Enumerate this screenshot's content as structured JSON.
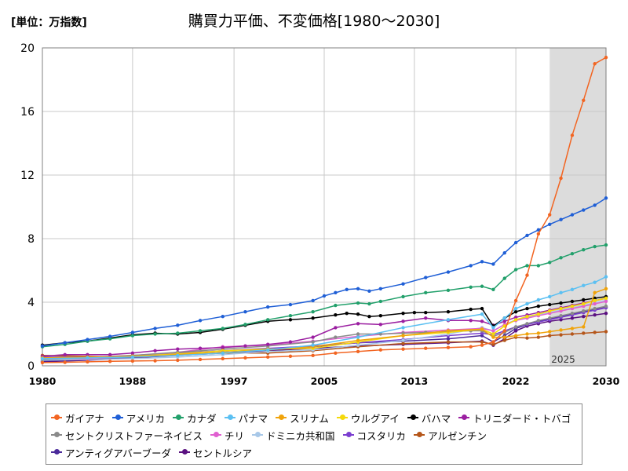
{
  "header": {
    "unit": "[単位：万指数]",
    "title": "購買力平価、不変価格[1980～2030]"
  },
  "chart_data": {
    "type": "line",
    "title": "購買力平価、不変価格[1980～2030]",
    "ylabel": "[単位：万指数]",
    "xlim": [
      1980,
      2030
    ],
    "ylim": [
      0,
      20
    ],
    "x_ticks": [
      1980,
      1988,
      1997,
      2005,
      2013,
      2022,
      2030
    ],
    "y_ticks": [
      0,
      4,
      8,
      12,
      16,
      20
    ],
    "grid": true,
    "forecast_from": 2025,
    "forecast_label": "2025",
    "legend_position": "bottom",
    "series": [
      {
        "name": "ガイアナ",
        "color": "#f26522",
        "x": [
          1980,
          1982,
          1984,
          1986,
          1988,
          1990,
          1992,
          1994,
          1996,
          1998,
          2000,
          2002,
          2004,
          2006,
          2008,
          2010,
          2012,
          2014,
          2016,
          2018,
          2019,
          2020,
          2021,
          2022,
          2023,
          2024,
          2025,
          2026,
          2027,
          2028,
          2029,
          2030
        ],
        "values": [
          0.2,
          0.22,
          0.25,
          0.28,
          0.3,
          0.32,
          0.35,
          0.4,
          0.45,
          0.5,
          0.55,
          0.6,
          0.65,
          0.8,
          0.9,
          1.0,
          1.05,
          1.1,
          1.15,
          1.2,
          1.3,
          1.5,
          2.2,
          4.1,
          5.7,
          8.3,
          9.5,
          11.8,
          14.5,
          16.7,
          19.0,
          19.4
        ]
      },
      {
        "name": "アメリカ",
        "color": "#1f5fd6",
        "x": [
          1980,
          1982,
          1984,
          1986,
          1988,
          1990,
          1992,
          1994,
          1996,
          1998,
          2000,
          2002,
          2004,
          2005,
          2006,
          2007,
          2008,
          2009,
          2010,
          2012,
          2014,
          2016,
          2018,
          2019,
          2020,
          2021,
          2022,
          2023,
          2024,
          2025,
          2026,
          2027,
          2028,
          2029,
          2030
        ],
        "values": [
          1.25,
          1.45,
          1.65,
          1.85,
          2.1,
          2.35,
          2.55,
          2.85,
          3.1,
          3.4,
          3.7,
          3.85,
          4.1,
          4.4,
          4.6,
          4.8,
          4.85,
          4.7,
          4.85,
          5.15,
          5.55,
          5.9,
          6.3,
          6.55,
          6.4,
          7.1,
          7.75,
          8.2,
          8.55,
          8.9,
          9.2,
          9.5,
          9.8,
          10.1,
          10.55
        ]
      },
      {
        "name": "カナダ",
        "color": "#22a06b",
        "x": [
          1980,
          1982,
          1984,
          1986,
          1988,
          1990,
          1992,
          1994,
          1996,
          1998,
          2000,
          2002,
          2004,
          2006,
          2008,
          2009,
          2010,
          2012,
          2014,
          2016,
          2018,
          2019,
          2020,
          2021,
          2022,
          2023,
          2024,
          2025,
          2026,
          2027,
          2028,
          2029,
          2030
        ],
        "values": [
          1.2,
          1.35,
          1.55,
          1.7,
          1.9,
          2.0,
          2.05,
          2.2,
          2.35,
          2.6,
          2.9,
          3.15,
          3.4,
          3.8,
          3.95,
          3.9,
          4.05,
          4.35,
          4.6,
          4.75,
          4.95,
          5.0,
          4.8,
          5.5,
          6.05,
          6.3,
          6.3,
          6.5,
          6.8,
          7.05,
          7.3,
          7.5,
          7.6
        ]
      },
      {
        "name": "パナマ",
        "color": "#5bc0f2",
        "x": [
          1980,
          1984,
          1988,
          1992,
          1996,
          2000,
          2004,
          2008,
          2012,
          2016,
          2019,
          2020,
          2021,
          2022,
          2023,
          2024,
          2025,
          2026,
          2027,
          2028,
          2029,
          2030
        ],
        "values": [
          0.45,
          0.5,
          0.55,
          0.65,
          0.8,
          1.0,
          1.3,
          1.8,
          2.4,
          2.9,
          3.25,
          2.4,
          3.0,
          3.6,
          3.9,
          4.15,
          4.35,
          4.6,
          4.8,
          5.05,
          5.25,
          5.6
        ]
      },
      {
        "name": "スリナム",
        "color": "#f0a30a",
        "x": [
          1980,
          1984,
          1988,
          1992,
          1996,
          2000,
          2004,
          2008,
          2012,
          2016,
          2019,
          2020,
          2021,
          2022,
          2023,
          2024,
          2025,
          2026,
          2027,
          2028,
          2029,
          2030
        ],
        "values": [
          0.5,
          0.55,
          0.6,
          0.7,
          0.85,
          1.0,
          1.2,
          1.6,
          1.9,
          2.2,
          2.3,
          1.8,
          1.8,
          1.9,
          2.0,
          2.05,
          2.15,
          2.25,
          2.35,
          2.45,
          4.6,
          4.85
        ]
      },
      {
        "name": "ウルグアイ",
        "color": "#f5d90a",
        "x": [
          1980,
          1984,
          1988,
          1992,
          1996,
          2000,
          2004,
          2008,
          2012,
          2016,
          2019,
          2020,
          2021,
          2022,
          2023,
          2024,
          2025,
          2026,
          2027,
          2028,
          2029,
          2030
        ],
        "values": [
          0.5,
          0.5,
          0.6,
          0.75,
          0.95,
          1.05,
          1.1,
          1.5,
          1.9,
          2.1,
          2.3,
          2.0,
          2.5,
          2.9,
          3.1,
          3.25,
          3.45,
          3.6,
          3.75,
          3.9,
          4.1,
          4.25
        ]
      },
      {
        "name": "バハマ",
        "color": "#000000",
        "x": [
          1980,
          1982,
          1984,
          1986,
          1988,
          1990,
          1992,
          1994,
          1996,
          1998,
          2000,
          2002,
          2004,
          2006,
          2007,
          2008,
          2009,
          2010,
          2012,
          2013,
          2014,
          2016,
          2018,
          2019,
          2020,
          2021,
          2022,
          2023,
          2024,
          2025,
          2026,
          2027,
          2028,
          2029,
          2030
        ],
        "values": [
          1.3,
          1.45,
          1.55,
          1.75,
          1.95,
          2.05,
          2.0,
          2.1,
          2.3,
          2.55,
          2.8,
          2.9,
          3.0,
          3.2,
          3.3,
          3.25,
          3.1,
          3.15,
          3.3,
          3.35,
          3.35,
          3.4,
          3.55,
          3.6,
          2.5,
          3.0,
          3.4,
          3.6,
          3.75,
          3.85,
          3.95,
          4.05,
          4.15,
          4.25,
          4.35
        ]
      },
      {
        "name": "トリニダード・トバゴ",
        "color": "#9b1fa1",
        "x": [
          1980,
          1982,
          1984,
          1986,
          1988,
          1990,
          1992,
          1994,
          1996,
          1998,
          2000,
          2002,
          2004,
          2006,
          2008,
          2010,
          2012,
          2014,
          2016,
          2018,
          2019,
          2020,
          2021,
          2022,
          2023,
          2024,
          2025,
          2026,
          2027,
          2028,
          2029,
          2030
        ],
        "values": [
          0.6,
          0.7,
          0.7,
          0.7,
          0.8,
          0.95,
          1.05,
          1.1,
          1.15,
          1.25,
          1.35,
          1.5,
          1.8,
          2.4,
          2.65,
          2.6,
          2.8,
          3.0,
          2.85,
          2.85,
          2.8,
          2.55,
          2.8,
          3.05,
          3.2,
          3.35,
          3.5,
          3.65,
          3.8,
          3.95,
          4.1,
          4.25
        ]
      },
      {
        "name": "セントクリストファーネイビス",
        "color": "#8a8a8a",
        "x": [
          1980,
          1984,
          1988,
          1992,
          1996,
          2000,
          2004,
          2006,
          2008,
          2010,
          2012,
          2014,
          2016,
          2018,
          2019,
          2020,
          2021,
          2022,
          2023,
          2024,
          2025,
          2026,
          2027,
          2028,
          2029,
          2030
        ],
        "values": [
          0.4,
          0.5,
          0.65,
          0.85,
          1.05,
          1.25,
          1.5,
          1.8,
          2.0,
          2.0,
          2.05,
          2.1,
          2.15,
          2.2,
          2.2,
          1.85,
          2.1,
          2.45,
          2.65,
          2.85,
          3.0,
          3.15,
          3.3,
          3.45,
          3.6,
          3.75
        ]
      },
      {
        "name": "チリ",
        "color": "#e060d0",
        "x": [
          1980,
          1984,
          1988,
          1992,
          1996,
          2000,
          2004,
          2008,
          2012,
          2016,
          2019,
          2020,
          2021,
          2022,
          2023,
          2024,
          2025,
          2026,
          2027,
          2028,
          2029,
          2030
        ],
        "values": [
          0.45,
          0.45,
          0.6,
          0.85,
          1.2,
          1.3,
          1.55,
          1.85,
          2.1,
          2.25,
          2.35,
          2.2,
          2.6,
          2.85,
          3.0,
          3.15,
          3.3,
          3.45,
          3.6,
          3.75,
          3.9,
          4.05
        ]
      },
      {
        "name": "ドミニカ共和国",
        "color": "#a8c8e8",
        "x": [
          1980,
          1984,
          1988,
          1992,
          1996,
          2000,
          2004,
          2008,
          2012,
          2016,
          2019,
          2020,
          2021,
          2022,
          2023,
          2024,
          2025,
          2026,
          2027,
          2028,
          2029,
          2030
        ],
        "values": [
          0.35,
          0.4,
          0.45,
          0.55,
          0.7,
          0.9,
          1.0,
          1.3,
          1.6,
          2.0,
          2.4,
          2.2,
          2.6,
          2.9,
          3.05,
          3.2,
          3.35,
          3.5,
          3.65,
          3.8,
          3.95,
          4.1
        ]
      },
      {
        "name": "コスタリカ",
        "color": "#7b3fd0",
        "x": [
          1980,
          1984,
          1988,
          1992,
          1996,
          2000,
          2004,
          2008,
          2012,
          2016,
          2019,
          2020,
          2021,
          2022,
          2023,
          2024,
          2025,
          2026,
          2027,
          2028,
          2029,
          2030
        ],
        "values": [
          0.55,
          0.55,
          0.65,
          0.8,
          0.95,
          1.1,
          1.25,
          1.45,
          1.65,
          1.9,
          2.05,
          1.95,
          2.2,
          2.45,
          2.6,
          2.75,
          2.9,
          3.05,
          3.2,
          3.35,
          3.5,
          3.65
        ]
      },
      {
        "name": "アルゼンチン",
        "color": "#b5561a",
        "x": [
          1980,
          1984,
          1988,
          1992,
          1996,
          2000,
          2004,
          2008,
          2012,
          2016,
          2019,
          2020,
          2021,
          2022,
          2023,
          2024,
          2025,
          2026,
          2027,
          2028,
          2029,
          2030
        ],
        "values": [
          0.65,
          0.6,
          0.55,
          0.75,
          0.8,
          0.8,
          0.95,
          1.2,
          1.4,
          1.5,
          1.5,
          1.35,
          1.6,
          1.8,
          1.75,
          1.8,
          1.9,
          1.95,
          2.0,
          2.05,
          2.1,
          2.15
        ]
      },
      {
        "name": "アンティグアバーブーダ",
        "color": "#4a2a9a",
        "x": [
          1980,
          1984,
          1988,
          1992,
          1996,
          2000,
          2004,
          2008,
          2012,
          2016,
          2019,
          2020,
          2021,
          2022,
          2023,
          2024,
          2025,
          2026,
          2027,
          2028,
          2029,
          2030
        ],
        "values": [
          0.3,
          0.4,
          0.55,
          0.7,
          0.85,
          1.0,
          1.2,
          1.45,
          1.55,
          1.7,
          1.9,
          1.5,
          1.9,
          2.35,
          2.6,
          2.8,
          2.95,
          3.1,
          3.25,
          3.4,
          3.55,
          3.7
        ]
      },
      {
        "name": "セントルシア",
        "color": "#5a1080",
        "x": [
          1980,
          1984,
          1988,
          1992,
          1996,
          2000,
          2004,
          2008,
          2012,
          2016,
          2019,
          2020,
          2021,
          2022,
          2023,
          2024,
          2025,
          2026,
          2027,
          2028,
          2029,
          2030
        ],
        "values": [
          0.25,
          0.35,
          0.5,
          0.65,
          0.8,
          0.95,
          1.1,
          1.25,
          1.35,
          1.45,
          1.55,
          1.3,
          1.7,
          2.2,
          2.5,
          2.65,
          2.8,
          2.9,
          3.0,
          3.1,
          3.2,
          3.3
        ]
      }
    ]
  }
}
